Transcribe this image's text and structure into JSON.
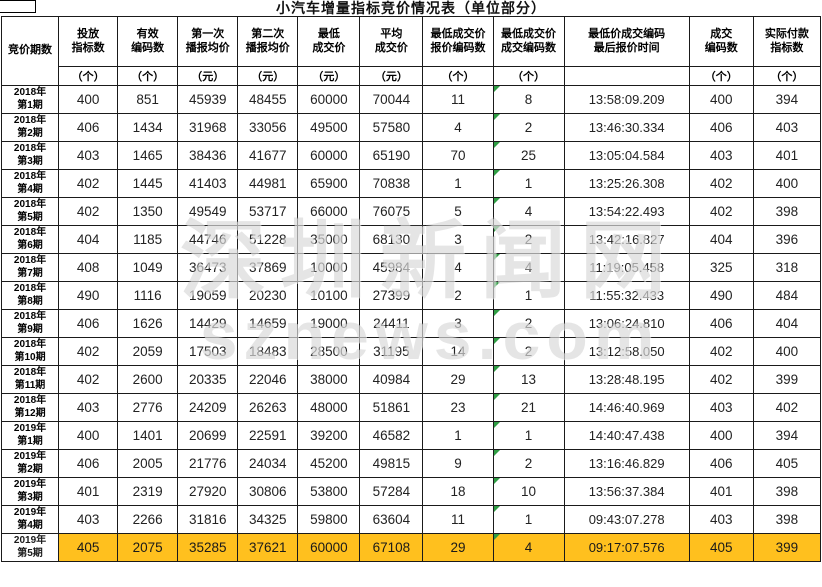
{
  "title": "小汽车增量指标竞价情况表（单位部分）",
  "watermark": {
    "line1": "深圳新闻网",
    "line2": "sznews.com"
  },
  "colors": {
    "highlight": "#FFC01E",
    "flag_triangle": "#2f9e44",
    "border": "#1a1a1a"
  },
  "table": {
    "columns": [
      {
        "label": "竞价期数",
        "unit": ""
      },
      {
        "label": "投放\n指标数",
        "unit": "（个）"
      },
      {
        "label": "有效\n编码数",
        "unit": "（个）"
      },
      {
        "label": "第一次\n播报均价",
        "unit": "（元）"
      },
      {
        "label": "第二次\n播报均价",
        "unit": "（元）"
      },
      {
        "label": "最低\n成交价",
        "unit": "（元）"
      },
      {
        "label": "平均\n成交价",
        "unit": "（元）"
      },
      {
        "label": "最低成交价\n报价编码数",
        "unit": "（个）"
      },
      {
        "label": "最低成交价\n成交编码数",
        "unit": "（个）"
      },
      {
        "label": "最低价成交编码\n最后报价时间",
        "unit": ""
      },
      {
        "label": "成交\n编码数",
        "unit": "（个）"
      },
      {
        "label": "实际付款\n指标数",
        "unit": "（个）"
      }
    ],
    "rows": [
      {
        "period": "2018年\n第1期",
        "values": [
          "400",
          "851",
          "45939",
          "48455",
          "60000",
          "70044",
          "11",
          "8",
          "13:58:09.209",
          "400",
          "394"
        ],
        "highlight": false
      },
      {
        "period": "2018年\n第2期",
        "values": [
          "406",
          "1434",
          "31968",
          "33056",
          "49500",
          "57580",
          "4",
          "2",
          "13:46:30.334",
          "406",
          "403"
        ],
        "highlight": false
      },
      {
        "period": "2018年\n第3期",
        "values": [
          "403",
          "1465",
          "38436",
          "41677",
          "60000",
          "65190",
          "70",
          "25",
          "13:05:04.584",
          "403",
          "401"
        ],
        "highlight": false
      },
      {
        "period": "2018年\n第4期",
        "values": [
          "402",
          "1445",
          "41403",
          "44981",
          "65900",
          "70838",
          "1",
          "1",
          "13:25:26.308",
          "402",
          "400"
        ],
        "highlight": false
      },
      {
        "period": "2018年\n第5期",
        "values": [
          "402",
          "1350",
          "49549",
          "53717",
          "66000",
          "76075",
          "5",
          "4",
          "13:54:22.493",
          "402",
          "398"
        ],
        "highlight": false
      },
      {
        "period": "2018年\n第6期",
        "values": [
          "404",
          "1185",
          "44746",
          "51228",
          "35000",
          "68130",
          "3",
          "2",
          "13:42:16.827",
          "404",
          "396"
        ],
        "highlight": false
      },
      {
        "period": "2018年\n第7期",
        "values": [
          "408",
          "1049",
          "36473",
          "37869",
          "10000",
          "45984",
          "4",
          "4",
          "11:19:05.458",
          "325",
          "318"
        ],
        "highlight": false
      },
      {
        "period": "2018年\n第8期",
        "values": [
          "490",
          "1116",
          "19059",
          "20230",
          "10100",
          "27399",
          "2",
          "1",
          "11:55:32.433",
          "490",
          "484"
        ],
        "highlight": false
      },
      {
        "period": "2018年\n第9期",
        "values": [
          "406",
          "1626",
          "14429",
          "14659",
          "19000",
          "24411",
          "3",
          "2",
          "13:06:24.810",
          "406",
          "404"
        ],
        "highlight": false
      },
      {
        "period": "2018年\n第10期",
        "values": [
          "402",
          "2059",
          "17503",
          "18483",
          "28500",
          "31195",
          "14",
          "2",
          "13:12:58.050",
          "402",
          "400"
        ],
        "highlight": false
      },
      {
        "period": "2018年\n第11期",
        "values": [
          "402",
          "2600",
          "20335",
          "22046",
          "38000",
          "40984",
          "29",
          "13",
          "13:28:48.195",
          "402",
          "399"
        ],
        "highlight": false
      },
      {
        "period": "2018年\n第12期",
        "values": [
          "403",
          "2776",
          "24209",
          "26263",
          "48000",
          "51861",
          "23",
          "21",
          "14:46:40.969",
          "403",
          "402"
        ],
        "highlight": false
      },
      {
        "period": "2019年\n第1期",
        "values": [
          "400",
          "1401",
          "20699",
          "22591",
          "39200",
          "46582",
          "1",
          "1",
          "14:40:47.438",
          "400",
          "394"
        ],
        "highlight": false
      },
      {
        "period": "2019年\n第2期",
        "values": [
          "406",
          "2005",
          "21776",
          "24034",
          "45200",
          "49815",
          "9",
          "2",
          "13:16:46.829",
          "406",
          "405"
        ],
        "highlight": false
      },
      {
        "period": "2019年\n第3期",
        "values": [
          "401",
          "2319",
          "27920",
          "30806",
          "53800",
          "57284",
          "18",
          "10",
          "13:56:37.384",
          "401",
          "398"
        ],
        "highlight": false
      },
      {
        "period": "2019年\n第4期",
        "values": [
          "403",
          "2266",
          "31816",
          "34325",
          "59800",
          "63604",
          "11",
          "1",
          "09:43:07.278",
          "403",
          "398"
        ],
        "highlight": false
      },
      {
        "period": "2019年\n第5期",
        "values": [
          "405",
          "2075",
          "35285",
          "37621",
          "60000",
          "67108",
          "29",
          "4",
          "09:17:07.576",
          "405",
          "399"
        ],
        "highlight": true
      }
    ]
  }
}
